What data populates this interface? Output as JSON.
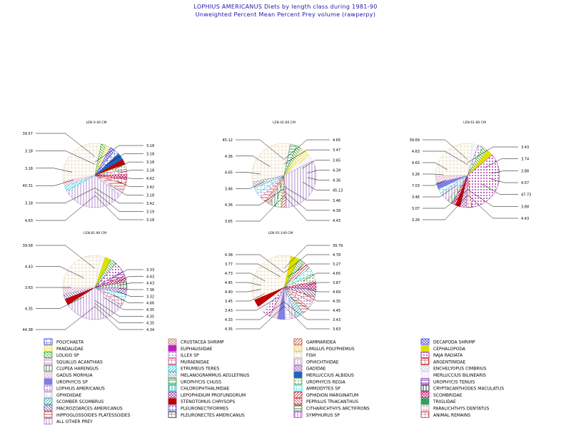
{
  "title_line1": "LOPHIUS AMERICANUS Diets by length class during 1981-90",
  "title_line2": "Unweighted Percent Mean Percent Prey  volume (rawperpy)",
  "chart_data": {
    "type": "pie",
    "legend": [
      {
        "name": "POLYCHAETA",
        "color": "#2020c0"
      },
      {
        "name": "PANDALIDAE",
        "color": "#e8d800"
      },
      {
        "name": "LOLIGO SP",
        "color": "#20a020"
      },
      {
        "name": "SQUALUS ACANTHIAS",
        "color": "#c080c0"
      },
      {
        "name": "CLUPEA HARENGUS",
        "color": "#207040"
      },
      {
        "name": "GADUS MORHUA",
        "color": "#e0b0c8"
      },
      {
        "name": "UROPHYCIS SP",
        "color": "#8080e0"
      },
      {
        "name": "LOPHIUS AMERICANUS",
        "color": "#8060a0"
      },
      {
        "name": "OPHIDIIDAE",
        "color": "#c0a0d8"
      },
      {
        "name": "SCOMBER SCOMBRUS",
        "color": "#20a0a0"
      },
      {
        "name": "MACROZOARCES AMERICANUS",
        "color": "#604080"
      },
      {
        "name": "HIPPOGLOSSOIDES PLATESSOIDES",
        "color": "#c03030"
      },
      {
        "name": "ALL OTHER PREY",
        "color": "#a070c0"
      },
      {
        "name": "CRUSTACEA SHRIMP",
        "color": "#c08080"
      },
      {
        "name": "EUPHAUSIIDAE",
        "color": "#c020c0"
      },
      {
        "name": "ILLEX SP",
        "color": "#b070d0"
      },
      {
        "name": "MURAENIDAE",
        "color": "#c03060"
      },
      {
        "name": "ETRUMEUS TERES",
        "color": "#00d0e0"
      },
      {
        "name": "MELANOGRAMMUS AEGLEFINUS",
        "color": "#8090a0"
      },
      {
        "name": "UROPHYCIS CHUSS",
        "color": "#208040"
      },
      {
        "name": "CHLOROPHTHALMIDAE",
        "color": "#00a0a0"
      },
      {
        "name": "LEPOPHIDIUM PROFUNDORUM",
        "color": "#8040a0"
      },
      {
        "name": "STENOTOMUS CHRYSOPS",
        "color": "#c00000"
      },
      {
        "name": "PLEURONECTIFORMES",
        "color": "#4040c0"
      },
      {
        "name": "PLEURONECTES AMERICANUS",
        "color": "#202020"
      },
      {
        "name": "GAMMARIDEA",
        "color": "#c04040"
      },
      {
        "name": "LIMULUS POLYPHEMUS",
        "color": "#e0c040"
      },
      {
        "name": "FISH",
        "color": "#e0c898"
      },
      {
        "name": "OPHICHTHIDAE",
        "color": "#b090c0"
      },
      {
        "name": "GADIDAE",
        "color": "#a060b0"
      },
      {
        "name": "MERLUCCIUS ALBIDUS",
        "color": "#2060c0"
      },
      {
        "name": "UROPHYCIS REGIA",
        "color": "#60a040"
      },
      {
        "name": "AMMODYTES SP",
        "color": "#00d0e0"
      },
      {
        "name": "OPHIDION MARGINATUM",
        "color": "#c02020"
      },
      {
        "name": "PEPRILUS TRIACANTHUS",
        "color": "#c03040"
      },
      {
        "name": "CITHARICHTHYS ARCTIFRONS",
        "color": "#306030"
      },
      {
        "name": "SYMPHURUS SP",
        "color": "#a040c0"
      },
      {
        "name": "DECAPODA SHRIMP",
        "color": "#4040e0"
      },
      {
        "name": "CEPHALOPODA",
        "color": "#e0e000"
      },
      {
        "name": "RAJA RADIATA",
        "color": "#900090"
      },
      {
        "name": "ARGENTINIDAE",
        "color": "#c00000"
      },
      {
        "name": "ENCHELYOPUS CIMBRIUS",
        "color": "#b0c0d0"
      },
      {
        "name": "MERLUCCIUS BILINEARIS",
        "color": "#e0e0f0"
      },
      {
        "name": "UROPHYCIS TENUIS",
        "color": "#6000a0"
      },
      {
        "name": "CRYPTACANTHODES MACULATUS",
        "color": "#000000"
      },
      {
        "name": "SCOMBRIDAE",
        "color": "#c00060"
      },
      {
        "name": "TRIGLIDAE",
        "color": "#30a060"
      },
      {
        "name": "PARALICHTHYS DENTATUS",
        "color": "#c080a0"
      },
      {
        "name": "ANIMAL REMAINS",
        "color": "#c02040"
      }
    ],
    "pies": [
      {
        "title": "LEN 0-40 CM",
        "left_labels": [
          "39.57",
          "3.18",
          "3.18",
          "40.31",
          "3.18",
          "4.63"
        ],
        "right_labels": [
          "3.18",
          "3.18",
          "3.18",
          "3.18",
          "4.62",
          "3.42",
          "3.18",
          "3.42",
          "3.19",
          "3.18"
        ],
        "slices": [
          {
            "prey": "FISH",
            "value": 39.57
          },
          {
            "prey": "LOLIGO SP",
            "value": 3.18
          },
          {
            "prey": "PANDALIDAE",
            "value": 3.18
          },
          {
            "prey": "DECAPODA SHRIMP",
            "value": 3.18
          },
          {
            "prey": "POLYCHAETA",
            "value": 3.18
          },
          {
            "prey": "MERLUCCIUS ALBIDUS",
            "value": 4.62
          },
          {
            "prey": "STENOTOMUS CHRYSOPS",
            "value": 3.42
          },
          {
            "prey": "UROPHYCIS REGIA",
            "value": 3.18
          },
          {
            "prey": "ANIMAL REMAINS",
            "value": 3.42
          },
          {
            "prey": "SCOMBRIDAE",
            "value": 3.19
          },
          {
            "prey": "ARGENTINIDAE",
            "value": 3.18
          },
          {
            "prey": "HIPPOGLOSSOIDES PLATESSOIDES",
            "value": 4.63
          },
          {
            "prey": "OPHIDIIDAE",
            "value": 3.18
          },
          {
            "prey": "ALL OTHER PREY",
            "value": 40.31
          },
          {
            "prey": "ETRUMEUS TERES",
            "value": 3.18
          },
          {
            "prey": "GADUS MORHUA",
            "value": 3.18
          }
        ]
      },
      {
        "title": "LEN 41-60 CM",
        "left_labels": [
          "45.12",
          "4.36",
          "4.65",
          "3.46",
          "4.36",
          "3.65"
        ],
        "right_labels": [
          "4.65",
          "3.47",
          "3.65",
          "4.39",
          "4.36",
          "45.13",
          "3.46",
          "4.39",
          "4.43"
        ],
        "slices": [
          {
            "prey": "FISH",
            "value": 45.12
          },
          {
            "prey": "UROPHYCIS CHUSS",
            "value": 4.65
          },
          {
            "prey": "LOLIGO SP",
            "value": 3.47
          },
          {
            "prey": "LIMULUS POLYPHEMUS",
            "value": 3.65
          },
          {
            "prey": "PANDALIDAE",
            "value": 4.39
          },
          {
            "prey": "MERLUCCIUS BILINEARIS",
            "value": 4.36
          },
          {
            "prey": "ALL OTHER PREY",
            "value": 45.13
          },
          {
            "prey": "GAMMARIDEA",
            "value": 3.46
          },
          {
            "prey": "UROPHYCIS REGIA",
            "value": 4.39
          },
          {
            "prey": "CLUPEA HARENGUS",
            "value": 4.43
          },
          {
            "prey": "CRUSTACEA SHRIMP",
            "value": 3.65
          },
          {
            "prey": "HIPPOGLOSSOIDES PLATESSOIDES",
            "value": 4.36
          },
          {
            "prey": "ILLEX SP",
            "value": 3.46
          },
          {
            "prey": "AMMODYTES SP",
            "value": 4.65
          },
          {
            "prey": "MELANOGRAMMUS AEGLEFINUS",
            "value": 4.36
          }
        ]
      },
      {
        "title": "LEN 61-80 CM",
        "left_labels": [
          "39.69",
          "4.63",
          "4.63",
          "3.26",
          "7.03",
          "3.46",
          "3.07",
          "3.26"
        ],
        "right_labels": [
          "3.43",
          "3.74",
          "3.88",
          "4.57",
          "47.73",
          "3.88",
          "4.43"
        ],
        "slices": [
          {
            "prey": "FISH",
            "value": 39.69
          },
          {
            "prey": "MERLUCCIUS BILINEARIS",
            "value": 3.43
          },
          {
            "prey": "LOPHIUS AMERICANUS",
            "value": 3.74
          },
          {
            "prey": "LOLIGO SP",
            "value": 3.88
          },
          {
            "prey": "CEPHALOPODA",
            "value": 4.57
          },
          {
            "prey": "RAJA RADIATA",
            "value": 47.73
          },
          {
            "prey": "ANIMAL REMAINS",
            "value": 3.88
          },
          {
            "prey": "GADIDAE",
            "value": 4.43
          },
          {
            "prey": "STENOTOMUS CHRYSOPS",
            "value": 3.26
          },
          {
            "prey": "SCOMBRIDAE",
            "value": 3.07
          },
          {
            "prey": "CLUPEA HARENGUS",
            "value": 3.46
          },
          {
            "prey": "ALL OTHER PREY",
            "value": 7.03
          },
          {
            "prey": "AMMODYTES SP",
            "value": 3.26
          },
          {
            "prey": "UROPHYCIS SP",
            "value": 4.63
          },
          {
            "prey": "GADUS MORHUA",
            "value": 4.63
          }
        ]
      },
      {
        "title": "LEN 81-90 CM",
        "left_labels": [
          "39.58",
          "4.43",
          "3.63",
          "4.35",
          "44.38"
        ],
        "right_labels": [
          "3.33",
          "4.43",
          "4.43",
          "7.36",
          "3.32",
          "4.66",
          "4.35",
          "4.35",
          "4.35",
          "4.34"
        ],
        "slices": [
          {
            "prey": "FISH",
            "value": 39.58
          },
          {
            "prey": "MERLUCCIUS BILINEARIS",
            "value": 3.33
          },
          {
            "prey": "CEPHALOPODA",
            "value": 4.43
          },
          {
            "prey": "LOLIGO SP",
            "value": 4.43
          },
          {
            "prey": "RAJA RADIATA",
            "value": 7.36
          },
          {
            "prey": "UROPHYCIS TENUIS",
            "value": 3.32
          },
          {
            "prey": "SCOMBRIDAE",
            "value": 4.66
          },
          {
            "prey": "CLUPEA HARENGUS",
            "value": 4.35
          },
          {
            "prey": "GADIDAE",
            "value": 4.35
          },
          {
            "prey": "AMMODYTES SP",
            "value": 4.35
          },
          {
            "prey": "ANIMAL REMAINS",
            "value": 4.34
          },
          {
            "prey": "ALL OTHER PREY",
            "value": 44.38
          },
          {
            "prey": "STENOTOMUS CHRYSOPS",
            "value": 4.35
          },
          {
            "prey": "MACROZOARCES AMERICANUS",
            "value": 3.63
          },
          {
            "prey": "GADUS MORHUA",
            "value": 4.43
          }
        ]
      },
      {
        "title": "LEN 91-140 CM",
        "left_labels": [
          "4.38",
          "3.77",
          "4.73",
          "4.45",
          "4.40",
          "3.45",
          "3.43",
          "4.33",
          "4.35"
        ],
        "right_labels": [
          "39.79",
          "4.78",
          "3.27",
          "4.65",
          "3.87",
          "4.69",
          "4.35",
          "4.45",
          "3.43",
          "3.63"
        ],
        "slices": [
          {
            "prey": "FISH",
            "value": 39.79
          },
          {
            "prey": "CEPHALOPODA",
            "value": 4.78
          },
          {
            "prey": "LOLIGO SP",
            "value": 3.27
          },
          {
            "prey": "GAMMARIDEA",
            "value": 4.65
          },
          {
            "prey": "AMMODYTES SP",
            "value": 3.87
          },
          {
            "prey": "UROPHYCIS REGIA",
            "value": 4.69
          },
          {
            "prey": "SCOMBRIDAE",
            "value": 4.35
          },
          {
            "prey": "MACROZOARCES AMERICANUS",
            "value": 4.45
          },
          {
            "prey": "ANIMAL REMAINS",
            "value": 3.43
          },
          {
            "prey": "LOPHIUS AMERICANUS",
            "value": 3.63
          },
          {
            "prey": "HIPPOGLOSSOIDES PLATESSOIDES",
            "value": 4.35
          },
          {
            "prey": "SCOMBER SCOMBRUS",
            "value": 4.33
          },
          {
            "prey": "ALL OTHER PREY",
            "value": 3.43
          },
          {
            "prey": "OPHIDIIDAE",
            "value": 3.45
          },
          {
            "prey": "UROPHYCIS SP",
            "value": 4.4
          },
          {
            "prey": "GADUS MORHUA",
            "value": 4.45
          },
          {
            "prey": "RAJA RADIATA",
            "value": 4.73
          },
          {
            "prey": "MERLUCCIUS BILINEARIS",
            "value": 3.77
          },
          {
            "prey": "STENOTOMUS CHRYSOPS",
            "value": 4.38
          }
        ]
      }
    ]
  }
}
